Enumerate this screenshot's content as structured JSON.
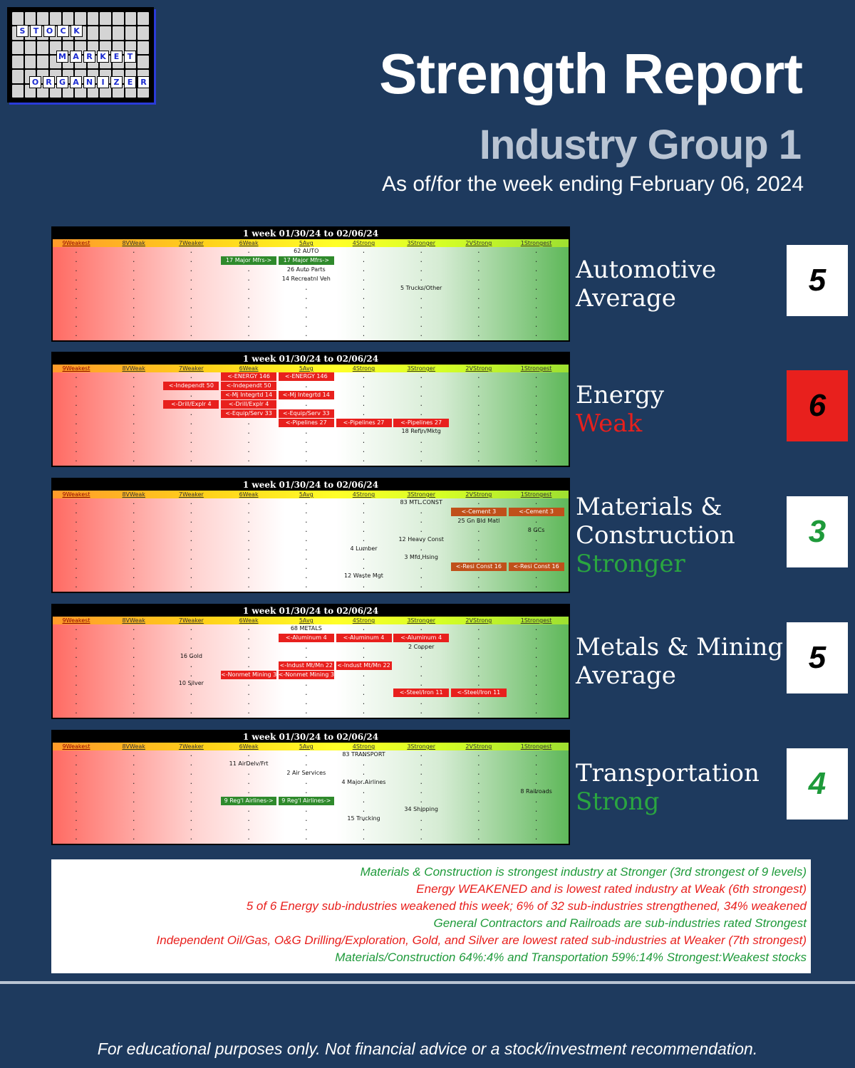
{
  "logo": {
    "letters": [
      "S",
      "T",
      "O",
      "C",
      "K",
      "M",
      "A",
      "R",
      "K",
      "E",
      "T",
      "O",
      "R",
      "G",
      "A",
      "N",
      "I",
      "Z",
      "E",
      "R"
    ],
    "accent": "#1b2bd0"
  },
  "header": {
    "title": "Strength Report",
    "subtitle": "Industry Group 1",
    "as_of": "As of/for the week ending February 06, 2024"
  },
  "level_labels": [
    "9Weakest",
    "8VWeak",
    "7Weaker",
    "6Weak",
    "5Avg",
    "4Strong",
    "3Stronger",
    "2VStrong",
    "1Strongest"
  ],
  "colors": {
    "weak": "#e8201d",
    "strong_text": "#2aa640",
    "weak_text": "#e8201d",
    "background": "#1e3a5e"
  },
  "panels": [
    {
      "period": "1 week 01/30/24 to 02/06/24",
      "industry": "Automotive",
      "rating_word": "Average",
      "rating_color": "#ffffff",
      "score": "5",
      "score_bg": "#ffffff",
      "score_color": "#000000",
      "items": [
        {
          "label": "62 AUTO",
          "row": 0,
          "col": 5,
          "span": 1,
          "style": "plain"
        },
        {
          "label": "17 Major Mfrs->",
          "row": 1,
          "col": 4,
          "span": 1,
          "style": "green"
        },
        {
          "label": "17 Major Mfrs->",
          "row": 1,
          "col": 5,
          "span": 1,
          "style": "green"
        },
        {
          "label": "26 Auto Parts",
          "row": 2,
          "col": 5,
          "span": 1,
          "style": "plain"
        },
        {
          "label": "14 Recreatnl Veh",
          "row": 3,
          "col": 5,
          "span": 1,
          "style": "plain"
        },
        {
          "label": "5 Trucks/Other",
          "row": 4,
          "col": 7,
          "span": 1,
          "style": "plain"
        }
      ]
    },
    {
      "period": "1 week 01/30/24 to 02/06/24",
      "industry": "Energy",
      "rating_word": "Weak",
      "rating_color": "#e8201d",
      "score": "6",
      "score_bg": "#e8201d",
      "score_color": "#000000",
      "items": [
        {
          "label": "<-ENERGY 146",
          "row": 0,
          "col": 4,
          "span": 1,
          "style": "red"
        },
        {
          "label": "<-ENERGY 146",
          "row": 0,
          "col": 5,
          "span": 1,
          "style": "red"
        },
        {
          "label": "<-Independt 50",
          "row": 1,
          "col": 3,
          "span": 1,
          "style": "red"
        },
        {
          "label": "<-Independt 50",
          "row": 1,
          "col": 4,
          "span": 1,
          "style": "red"
        },
        {
          "label": "<-Mj Integrtd 14",
          "row": 2,
          "col": 4,
          "span": 1,
          "style": "red"
        },
        {
          "label": "<-Mj Integrtd 14",
          "row": 2,
          "col": 5,
          "span": 1,
          "style": "red"
        },
        {
          "label": "<-Drill/Explr 4",
          "row": 3,
          "col": 3,
          "span": 1,
          "style": "red"
        },
        {
          "label": "<-Drill/Explr 4",
          "row": 3,
          "col": 4,
          "span": 1,
          "style": "red"
        },
        {
          "label": "<-Equip/Serv 33",
          "row": 4,
          "col": 4,
          "span": 1,
          "style": "red"
        },
        {
          "label": "<-Equip/Serv 33",
          "row": 4,
          "col": 5,
          "span": 1,
          "style": "red"
        },
        {
          "label": "<-Pipelines 27",
          "row": 5,
          "col": 5,
          "span": 1,
          "style": "red"
        },
        {
          "label": "<-Pipelines 27",
          "row": 5,
          "col": 6,
          "span": 1,
          "style": "red"
        },
        {
          "label": "<-Pipelines 27",
          "row": 5,
          "col": 7,
          "span": 1,
          "style": "red"
        },
        {
          "label": "18 Refin/Mktg",
          "row": 6,
          "col": 7,
          "span": 1,
          "style": "plain"
        }
      ]
    },
    {
      "period": "1 week 01/30/24 to 02/06/24",
      "industry": "Materials & Construction",
      "rating_word": "Stronger",
      "rating_color": "#2aa640",
      "score": "3",
      "score_bg": "#ffffff",
      "score_color": "#1e9a3a",
      "items": [
        {
          "label": "83 MTL CONST",
          "row": 0,
          "col": 7,
          "span": 1,
          "style": "plain"
        },
        {
          "label": "<-Cement 3",
          "row": 1,
          "col": 8,
          "span": 1,
          "style": "brown"
        },
        {
          "label": "<-Cement 3",
          "row": 1,
          "col": 9,
          "span": 1,
          "style": "brown"
        },
        {
          "label": "25 Gn Bld Matl",
          "row": 2,
          "col": 8,
          "span": 1,
          "style": "plain"
        },
        {
          "label": "8 GCs",
          "row": 3,
          "col": 9,
          "span": 1,
          "style": "plain"
        },
        {
          "label": "12 Heavy Const",
          "row": 4,
          "col": 7,
          "span": 1,
          "style": "plain"
        },
        {
          "label": "4 Lumber",
          "row": 5,
          "col": 6,
          "span": 1,
          "style": "plain"
        },
        {
          "label": "3 Mfd Hsing",
          "row": 6,
          "col": 7,
          "span": 1,
          "style": "plain"
        },
        {
          "label": "<-Resi Const 16",
          "row": 7,
          "col": 8,
          "span": 1,
          "style": "brown"
        },
        {
          "label": "<-Resi Const 16",
          "row": 7,
          "col": 9,
          "span": 1,
          "style": "brown"
        },
        {
          "label": "12 Waste Mgt",
          "row": 8,
          "col": 6,
          "span": 1,
          "style": "plain"
        }
      ]
    },
    {
      "period": "1 week 01/30/24 to 02/06/24",
      "industry": "Metals & Mining",
      "rating_word": "Average",
      "rating_color": "#ffffff",
      "score": "5",
      "score_bg": "#ffffff",
      "score_color": "#000000",
      "items": [
        {
          "label": "68 METALS",
          "row": 0,
          "col": 5,
          "span": 1,
          "style": "plain"
        },
        {
          "label": "<-Aluminum 4",
          "row": 1,
          "col": 5,
          "span": 1,
          "style": "red"
        },
        {
          "label": "<-Aluminum 4",
          "row": 1,
          "col": 6,
          "span": 1,
          "style": "red"
        },
        {
          "label": "<-Aluminum 4",
          "row": 1,
          "col": 7,
          "span": 1,
          "style": "red"
        },
        {
          "label": "2 Copper",
          "row": 2,
          "col": 7,
          "span": 1,
          "style": "plain"
        },
        {
          "label": "16 Gold",
          "row": 3,
          "col": 3,
          "span": 1,
          "style": "plain"
        },
        {
          "label": "<-Indust Mt/Mn 22",
          "row": 4,
          "col": 5,
          "span": 1,
          "style": "red"
        },
        {
          "label": "<-Indust Mt/Mn 22",
          "row": 4,
          "col": 6,
          "span": 1,
          "style": "red"
        },
        {
          "label": "<-Nonmet Mining 3",
          "row": 5,
          "col": 4,
          "span": 1,
          "style": "red"
        },
        {
          "label": "<-Nonmet Mining 3",
          "row": 5,
          "col": 5,
          "span": 1,
          "style": "red"
        },
        {
          "label": "10 Silver",
          "row": 6,
          "col": 3,
          "span": 1,
          "style": "plain"
        },
        {
          "label": "<-Steel/Iron 11",
          "row": 7,
          "col": 7,
          "span": 1,
          "style": "red"
        },
        {
          "label": "<-Steel/Iron 11",
          "row": 7,
          "col": 8,
          "span": 1,
          "style": "red"
        }
      ]
    },
    {
      "period": "1 week 01/30/24 to 02/06/24",
      "industry": "Transportation",
      "rating_word": "Strong",
      "rating_color": "#2aa640",
      "score": "4",
      "score_bg": "#ffffff",
      "score_color": "#1e9a3a",
      "items": [
        {
          "label": "83 TRANSPORT",
          "row": 0,
          "col": 6,
          "span": 1,
          "style": "plain"
        },
        {
          "label": "11 AirDelv/Frt",
          "row": 1,
          "col": 4,
          "span": 1,
          "style": "plain"
        },
        {
          "label": "2 Air Services",
          "row": 2,
          "col": 5,
          "span": 1,
          "style": "plain"
        },
        {
          "label": "4 Major Airlines",
          "row": 3,
          "col": 6,
          "span": 1,
          "style": "plain"
        },
        {
          "label": "8 Railroads",
          "row": 4,
          "col": 9,
          "span": 1,
          "style": "plain"
        },
        {
          "label": "9 Reg'l Airlines->",
          "row": 5,
          "col": 4,
          "span": 1,
          "style": "green"
        },
        {
          "label": "9 Reg'l Airlines->",
          "row": 5,
          "col": 5,
          "span": 1,
          "style": "green"
        },
        {
          "label": "34 Shipping",
          "row": 6,
          "col": 7,
          "span": 1,
          "style": "plain"
        },
        {
          "label": "15 Trucking",
          "row": 7,
          "col": 6,
          "span": 1,
          "style": "plain"
        }
      ]
    }
  ],
  "summary": [
    {
      "text": "Materials & Construction is strongest industry at Stronger (3rd strongest of 9 levels)",
      "color": "#1e9a3a"
    },
    {
      "text": "Energy WEAKENED and is lowest rated industry at Weak (6th strongest)",
      "color": "#e8201d"
    },
    {
      "text": "5 of 6 Energy sub-industries weakened this week; 6% of 32 sub-industries strengthened, 34% weakened",
      "color": "#e8201d"
    },
    {
      "text": "General Contractors and Railroads are sub-industries rated Strongest",
      "color": "#1e9a3a"
    },
    {
      "text": "Independent Oil/Gas, O&G Drilling/Exploration, Gold, and Silver are lowest rated sub-industries at Weaker (7th strongest)",
      "color": "#e8201d"
    },
    {
      "text": "Materials/Construction 64%:4% and Transportation 59%:14% Strongest:Weakest stocks",
      "color": "#1e9a3a"
    }
  ],
  "footer": "For educational purposes only. Not financial advice or a stock/investment recommendation."
}
